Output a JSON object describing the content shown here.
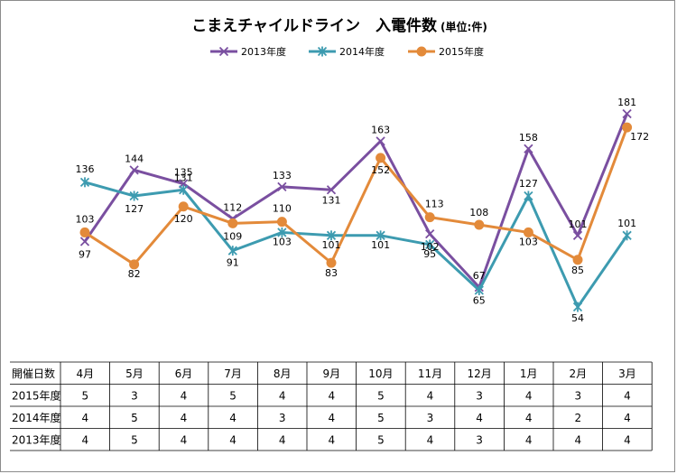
{
  "chart_data": {
    "type": "line",
    "title": "こまえチャイルドライン　入電件数",
    "subtitle": "(単位:件)",
    "categories": [
      "4月",
      "5月",
      "6月",
      "7月",
      "8月",
      "9月",
      "10月",
      "11月",
      "12月",
      "1月",
      "2月",
      "3月"
    ],
    "series": [
      {
        "name": "2013年度",
        "color": "#7a4fa0",
        "marker": "x",
        "values": [
          97,
          144,
          135,
          112,
          133,
          131,
          163,
          102,
          67,
          158,
          101,
          181
        ]
      },
      {
        "name": "2014年度",
        "color": "#3d9bb0",
        "marker": "asterisk",
        "values": [
          136,
          127,
          131,
          91,
          103,
          101,
          101,
          95,
          65,
          127,
          54,
          101
        ]
      },
      {
        "name": "2015年度",
        "color": "#e38a3a",
        "marker": "circle",
        "values": [
          103,
          82,
          120,
          109,
          110,
          83,
          152,
          113,
          108,
          103,
          85,
          172
        ]
      }
    ],
    "legend_position": "top-center",
    "grid": false,
    "table": {
      "header_label": "開催日数",
      "rows": [
        {
          "label": "2015年度",
          "values": [
            "5",
            "3",
            "4",
            "5",
            "4",
            "4",
            "5",
            "4",
            "3",
            "4",
            "3",
            "4"
          ]
        },
        {
          "label": "2014年度",
          "values": [
            "4",
            "5",
            "4",
            "4",
            "3",
            "4",
            "5",
            "3",
            "4",
            "4",
            "2",
            "4"
          ]
        },
        {
          "label": "2013年度",
          "values": [
            "4",
            "5",
            "4",
            "4",
            "4",
            "4",
            "5",
            "4",
            "3",
            "4",
            "4",
            "4"
          ]
        }
      ]
    }
  }
}
